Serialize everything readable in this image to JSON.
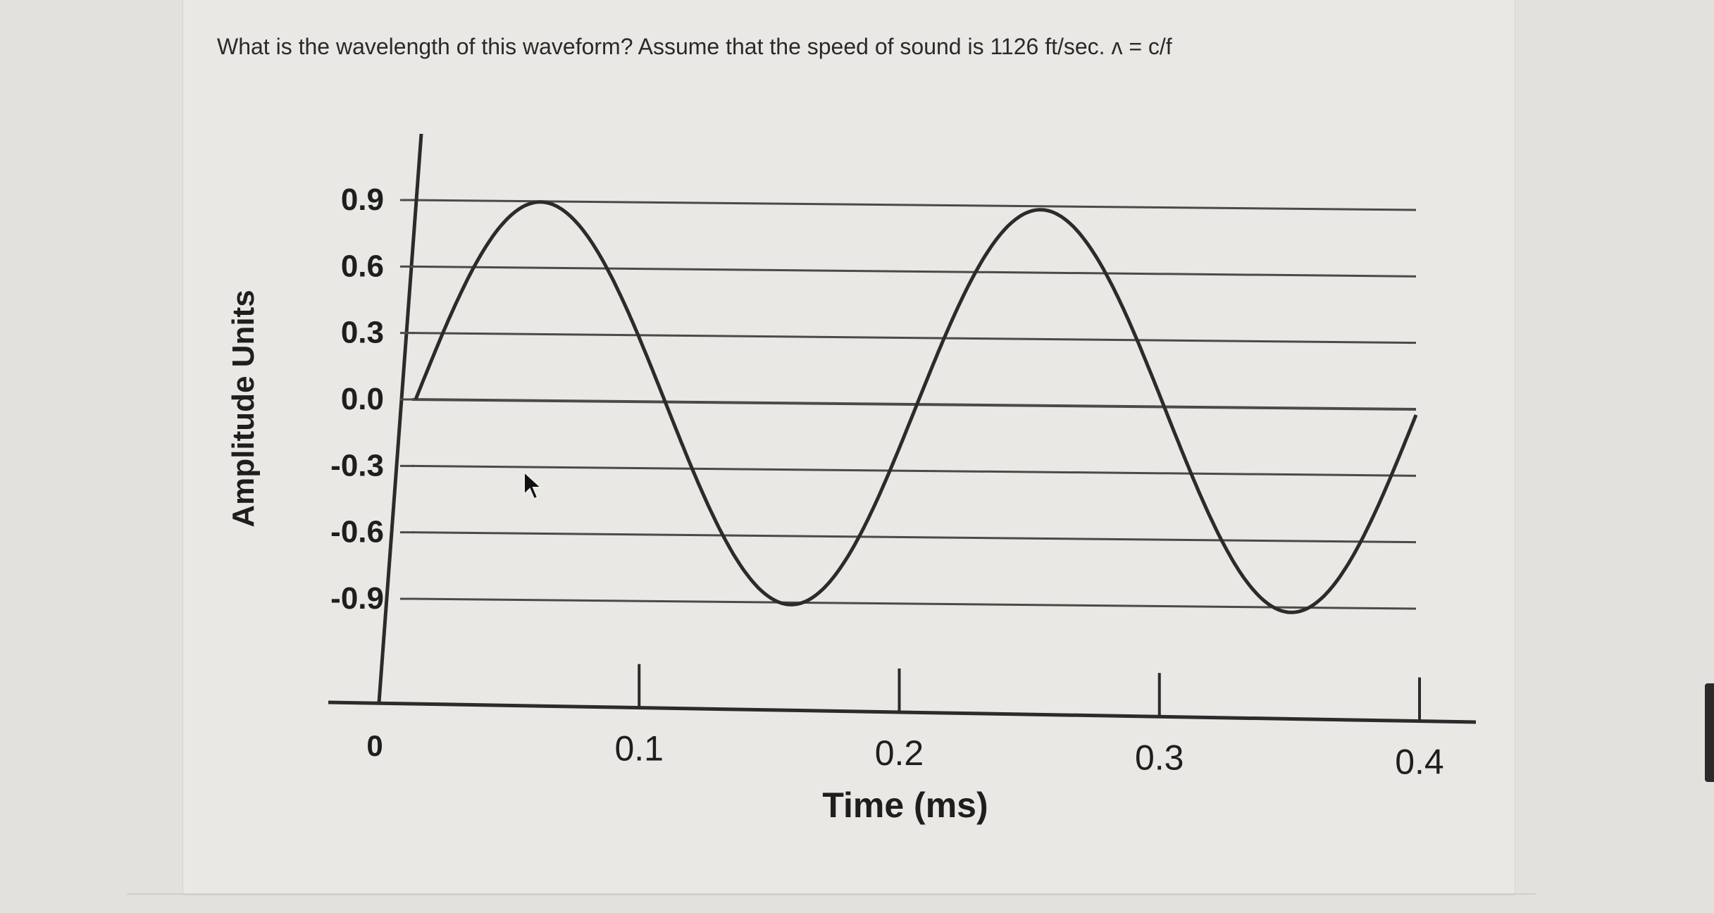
{
  "question": {
    "text": "What is the wavelength of this waveform? Assume that the speed of sound is 1126 ft/sec. ʌ = c/f"
  },
  "chart_data": {
    "type": "line",
    "title": "",
    "xlabel": "Time (ms)",
    "ylabel": "Amplitude Units",
    "xlim": [
      0,
      0.4
    ],
    "ylim": [
      -0.9,
      0.9
    ],
    "x_ticks": [
      0,
      0.1,
      0.2,
      0.3,
      0.4
    ],
    "x_tick_labels": [
      "0",
      "0.1",
      "0.2",
      "0.3",
      "0.4"
    ],
    "y_ticks": [
      0.9,
      0.6,
      0.3,
      0.0,
      -0.3,
      -0.6,
      -0.9
    ],
    "y_tick_labels": [
      "0.9",
      "0.6",
      "0.3",
      "0.0",
      "-0.3",
      "-0.6",
      "-0.9"
    ],
    "grid": true,
    "series": [
      {
        "x": [
          0,
          0.025,
          0.05,
          0.075,
          0.1,
          0.125,
          0.15,
          0.175,
          0.2,
          0.225,
          0.25,
          0.275,
          0.3,
          0.325,
          0.35,
          0.375,
          0.4
        ],
        "values": [
          0,
          0.64,
          0.9,
          0.64,
          0,
          -0.64,
          -0.9,
          -0.64,
          0,
          0.64,
          0.9,
          0.64,
          0,
          -0.64,
          -0.9,
          -0.64,
          0
        ],
        "period_ms": 0.2,
        "amplitude": 0.9
      }
    ],
    "colors": {
      "line": "#2b2b2b",
      "grid": "#4a4a4a"
    }
  },
  "cursor": {
    "icon": "mouse-pointer-icon"
  }
}
